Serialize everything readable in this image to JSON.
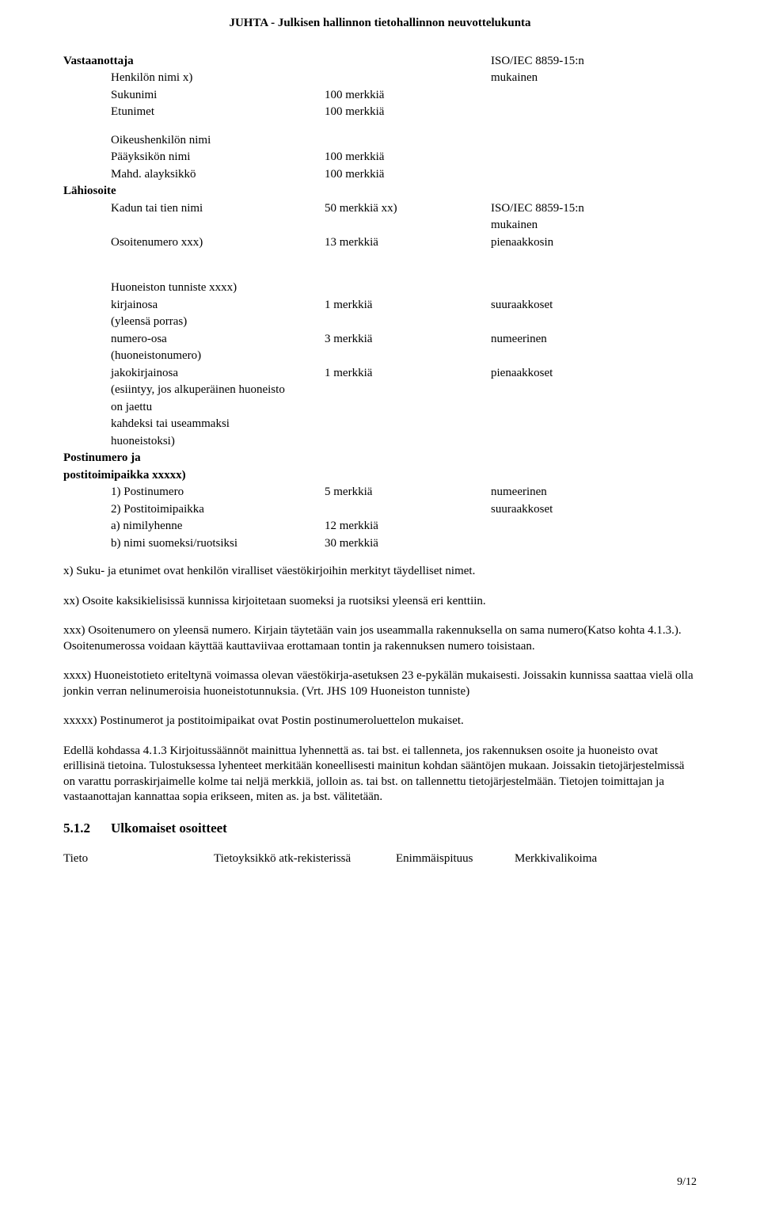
{
  "header": {
    "title": "JUHTA - Julkisen hallinnon tietohallinnon neuvottelukunta"
  },
  "vastaanottaja": {
    "label": "Vastaanottaja",
    "right": {
      "line1": "ISO/IEC 8859-15:n",
      "line2": "mukainen"
    },
    "henkilon_nimi": "Henkilön nimi x)",
    "sukunimi": {
      "label": "Sukunimi",
      "len": "100 merkkiä"
    },
    "etunimet": {
      "label": "Etunimet",
      "len": "100 merkkiä"
    },
    "oikeushenkilon_nimi": "Oikeushenkilön nimi",
    "paayksikon_nimi": {
      "label": "Pääyksikön nimi",
      "len": "100 merkkiä"
    },
    "mahd_alayksikko": {
      "label": "Mahd. alayksikkö",
      "len": "100 merkkiä"
    }
  },
  "lahiosoite": {
    "label": "Lähiosoite",
    "kadun_tai_tien_nimi": {
      "label": "Kadun tai tien nimi",
      "len": "50 merkkiä xx)",
      "right1": "ISO/IEC 8859-15:n",
      "right2": "mukainen"
    },
    "osoitenumero": {
      "label": "Osoitenumero xxx)",
      "len": "13 merkkiä",
      "right": "pienaakkosin"
    }
  },
  "huoneisto": {
    "header": "Huoneiston tunniste xxxx)",
    "kirjainosa": {
      "label": "kirjainosa",
      "len": "1 merkkiä",
      "charset": "suuraakkoset"
    },
    "yleen_porras": "(yleensä porras)",
    "numero_osa": {
      "label": "numero-osa",
      "len": "3 merkkiä",
      "charset": "numeerinen"
    },
    "huoneistonumero": "(huoneistonumero)",
    "jakokirjainosa": {
      "label": "jakokirjainosa",
      "len": "1 merkkiä",
      "charset": "pienaakkoset"
    },
    "esiintyy1": "(esiintyy, jos alkuperäinen huoneisto",
    "esiintyy2": "on jaettu",
    "esiintyy3": "kahdeksi tai useammaksi",
    "esiintyy4": "huoneistoksi)"
  },
  "postinumero": {
    "label1": "Postinumero ja",
    "label2": "postitoimipaikka xxxxx)",
    "postinumero_row": {
      "label": "1) Postinumero",
      "len": "5 merkkiä",
      "charset": "numeerinen"
    },
    "postitoimipaikka_row": {
      "label": "2) Postitoimipaikka",
      "charset": "suuraakkoset"
    },
    "nimilyhenne": {
      "label": "a) nimilyhenne",
      "len": "12 merkkiä"
    },
    "nimi_suomeksi": {
      "label": "b) nimi suomeksi/ruotsiksi",
      "len": "30 merkkiä"
    }
  },
  "notes": {
    "x": "x) Suku- ja etunimet ovat henkilön viralliset väestökirjoihin merkityt täydelliset nimet.",
    "xx": "xx) Osoite kaksikielisissä kunnissa kirjoitetaan suomeksi ja ruotsiksi yleensä eri kenttiin.",
    "xxx": "xxx) Osoitenumero on yleensä numero. Kirjain täytetään vain jos useammalla rakennuksella on sama numero(Katso kohta 4.1.3.). Osoitenumerossa voidaan käyttää kauttaviivaa erottamaan tontin ja rakennuksen numero toisistaan.",
    "xxxx": "xxxx) Huoneistotieto eriteltynä voimassa olevan väestökirja-asetuksen 23 e-pykälän mukaisesti. Joissakin kunnissa saattaa vielä olla jonkin verran nelinumeroisia huoneistotunnuksia. (Vrt. JHS 109 Huoneiston tunniste)",
    "xxxxx": "xxxxx) Postinumerot ja postitoimipaikat ovat Postin postinumeroluettelon mukaiset.",
    "edella": "Edellä kohdassa 4.1.3 Kirjoitussäännöt mainittua lyhennettä as. tai bst. ei tallenneta, jos rakennuksen osoite ja huoneisto ovat erillisinä tietoina. Tulostuksessa lyhenteet merkitään koneellisesti mainitun kohdan sääntöjen mukaan. Joissakin tietojärjestelmissä on varattu porraskirjaimelle kolme tai neljä merkkiä, jolloin as. tai bst. on tallennettu tietojärjestelmään. Tietojen toimittajan ja vastaanottajan kannattaa sopia erikseen, miten as. ja bst. välitetään."
  },
  "subsection": {
    "number": "5.1.2",
    "title": "Ulkomaiset osoitteet"
  },
  "footer_table": {
    "tieto": "Tieto",
    "tietoyksikko": "Tietoyksikkö atk-rekisterissä",
    "enimmaispituus": "Enimmäispituus",
    "merkkivalikoima": "Merkkivalikoima"
  },
  "page_number": "9/12"
}
